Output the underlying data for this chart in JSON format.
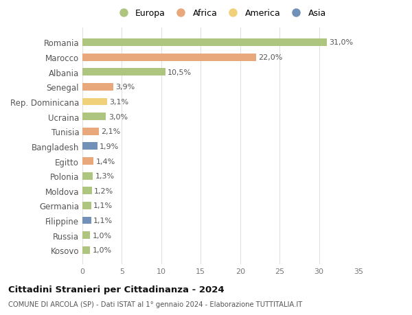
{
  "countries": [
    "Romania",
    "Marocco",
    "Albania",
    "Senegal",
    "Rep. Dominicana",
    "Ucraina",
    "Tunisia",
    "Bangladesh",
    "Egitto",
    "Polonia",
    "Moldova",
    "Germania",
    "Filippine",
    "Russia",
    "Kosovo"
  ],
  "values": [
    31.0,
    22.0,
    10.5,
    3.9,
    3.1,
    3.0,
    2.1,
    1.9,
    1.4,
    1.3,
    1.2,
    1.1,
    1.1,
    1.0,
    1.0
  ],
  "labels": [
    "31,0%",
    "22,0%",
    "10,5%",
    "3,9%",
    "3,1%",
    "3,0%",
    "2,1%",
    "1,9%",
    "1,4%",
    "1,3%",
    "1,2%",
    "1,1%",
    "1,1%",
    "1,0%",
    "1,0%"
  ],
  "colors": [
    "#adc57e",
    "#e8a87c",
    "#adc57e",
    "#e8a87c",
    "#f0d078",
    "#adc57e",
    "#e8a87c",
    "#7191b8",
    "#e8a87c",
    "#adc57e",
    "#adc57e",
    "#adc57e",
    "#7191b8",
    "#adc57e",
    "#adc57e"
  ],
  "legend_labels": [
    "Europa",
    "Africa",
    "America",
    "Asia"
  ],
  "legend_colors": [
    "#adc57e",
    "#e8a87c",
    "#f0d078",
    "#7191b8"
  ],
  "title": "Cittadini Stranieri per Cittadinanza - 2024",
  "subtitle": "COMUNE DI ARCOLA (SP) - Dati ISTAT al 1° gennaio 2024 - Elaborazione TUTTITALIA.IT",
  "xlim": [
    0,
    35
  ],
  "xticks": [
    0,
    5,
    10,
    15,
    20,
    25,
    30,
    35
  ],
  "bg_color": "#ffffff",
  "grid_color": "#e0e0e0",
  "bar_height": 0.5,
  "label_fontsize": 8.0,
  "tick_fontsize": 8.0,
  "country_fontsize": 8.5
}
